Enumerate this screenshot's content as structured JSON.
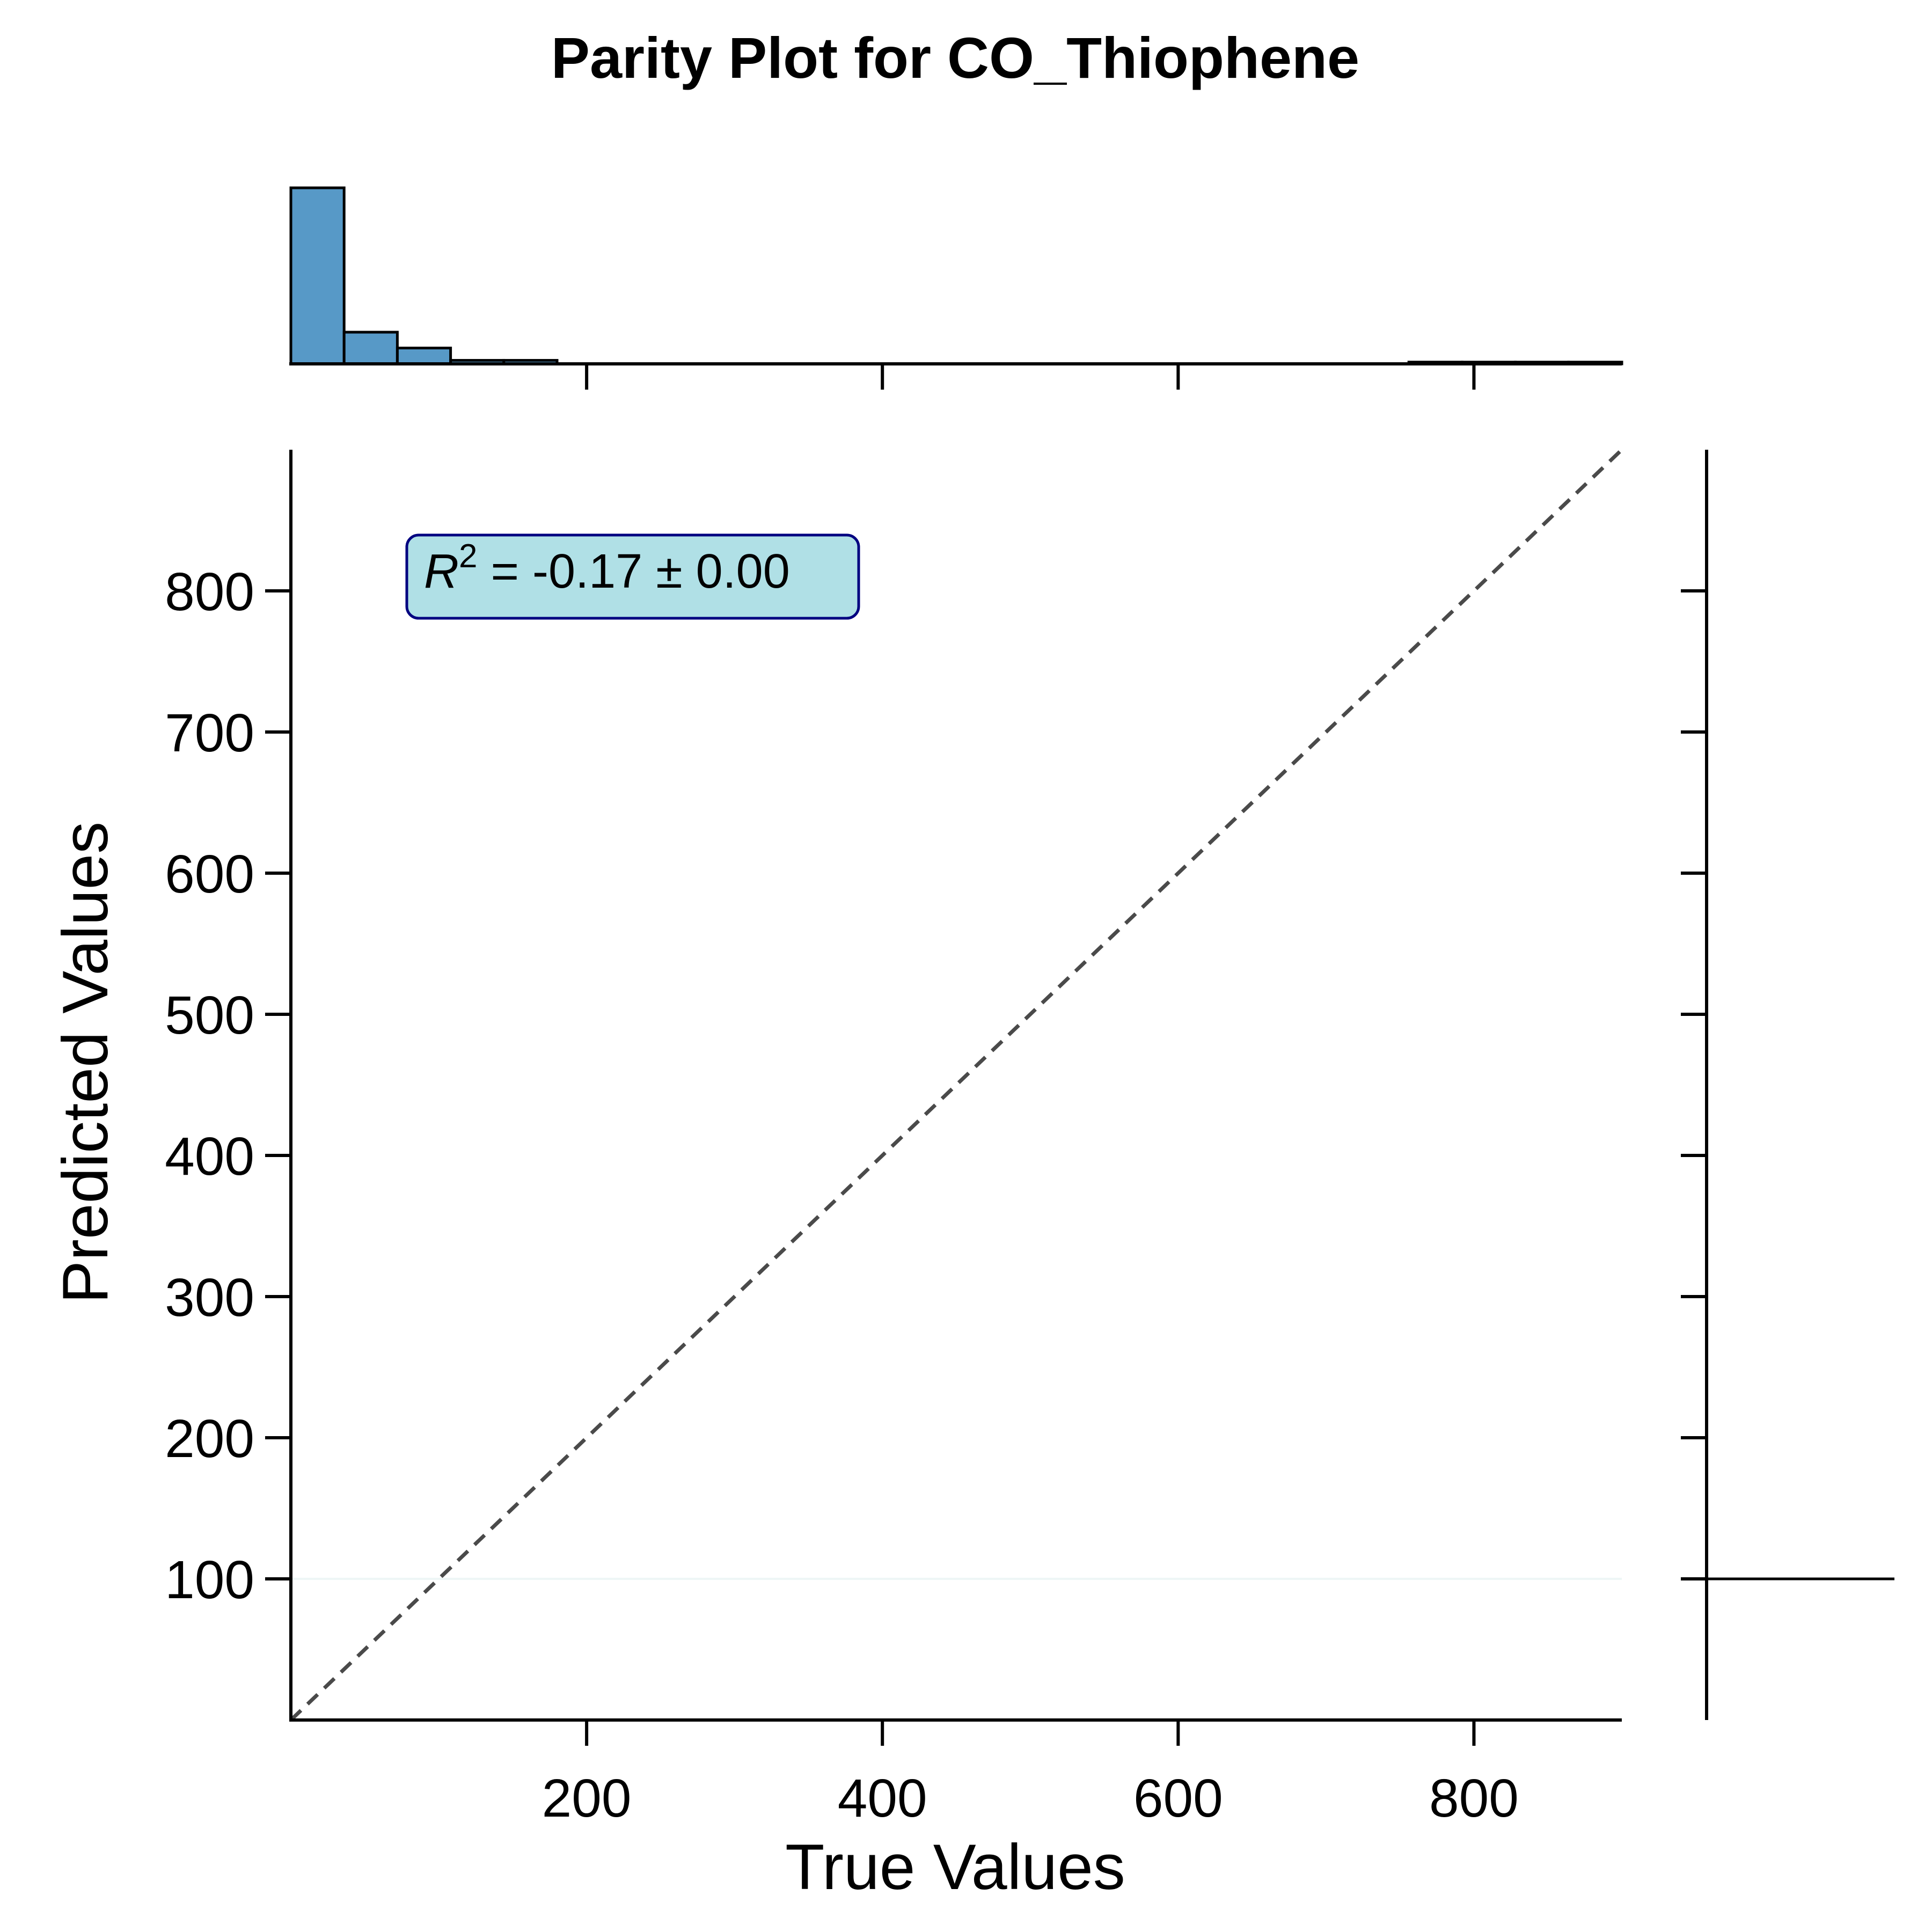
{
  "chart_data": {
    "type": "scatter",
    "title": "Parity Plot for CO_Thiophene",
    "xlabel": "True Values",
    "ylabel": "Predicted Values",
    "xlim": [
      0,
      900
    ],
    "ylim": [
      0,
      900
    ],
    "x_ticks": [
      200,
      400,
      600,
      800
    ],
    "y_ticks": [
      100,
      200,
      300,
      400,
      500,
      600,
      700,
      800
    ],
    "x_tick_labels": [
      "200",
      "400",
      "600",
      "800"
    ],
    "y_tick_labels": [
      "100",
      "200",
      "300",
      "400",
      "500",
      "600",
      "700",
      "800"
    ],
    "grid": false,
    "parity_line": {
      "from": [
        0,
        0
      ],
      "to": [
        900,
        900
      ],
      "style": "dashed",
      "color": "#4a4a4a"
    },
    "annotation": {
      "r2_symbol": "R",
      "r2_exp": "2",
      "r2_rest": " = -0.17 ± 0.00",
      "facecolor": "#b0e0e6",
      "edgecolor": "#000080",
      "position": "top-left"
    },
    "points": {
      "x": [],
      "y": []
    },
    "top_marginal": {
      "type": "histogram",
      "color": "#5799c7",
      "bin_width": 36,
      "bins": [
        {
          "x0": 0,
          "x1": 36,
          "height": 1.0
        },
        {
          "x0": 36,
          "x1": 72,
          "height": 0.18
        },
        {
          "x0": 72,
          "x1": 108,
          "height": 0.09
        },
        {
          "x0": 108,
          "x1": 144,
          "height": 0.02
        },
        {
          "x0": 144,
          "x1": 180,
          "height": 0.02
        },
        {
          "x0": 756,
          "x1": 792,
          "height": 0.01
        },
        {
          "x0": 792,
          "x1": 828,
          "height": 0.01
        },
        {
          "x0": 828,
          "x1": 864,
          "height": 0.01
        },
        {
          "x0": 864,
          "x1": 900,
          "height": 0.01
        }
      ]
    },
    "right_marginal": {
      "type": "histogram",
      "y_ticks": [
        100,
        200,
        300,
        400,
        500,
        600,
        700,
        800
      ],
      "spike_at": 100,
      "spike_length": 1.0
    }
  }
}
